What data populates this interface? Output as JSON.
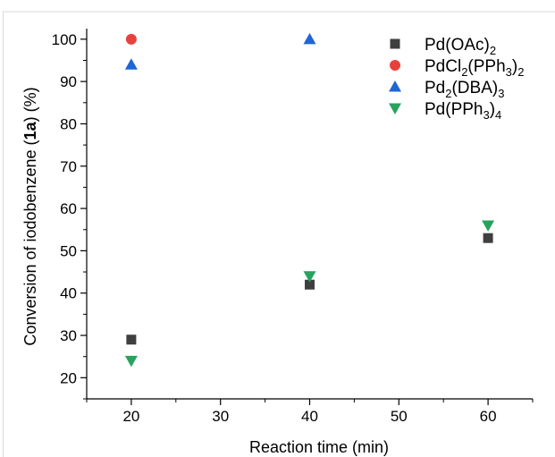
{
  "chart_data": {
    "type": "scatter",
    "xlabel": "Reaction time (min)",
    "ylabel": {
      "before": "Conversion of iodobenzene (",
      "bold": "1a",
      "after": ") (%)"
    },
    "xlim": [
      15,
      65
    ],
    "ylim": [
      15,
      102.5
    ],
    "xticks": [
      20,
      30,
      40,
      50,
      60
    ],
    "yticks": [
      20,
      30,
      40,
      50,
      60,
      70,
      80,
      90,
      100
    ],
    "grid": false,
    "legend_position": "top-right",
    "series": [
      {
        "name": "Pd(OAc)2",
        "name_parts": [
          [
            "Pd(OAc)",
            "n"
          ],
          [
            "2",
            "sub"
          ]
        ],
        "marker": "square",
        "color": "#3f3f3f",
        "x": [
          20,
          40,
          60
        ],
        "y": [
          29,
          42,
          53
        ]
      },
      {
        "name": "PdCl2(PPh3)2",
        "name_parts": [
          [
            "PdCl",
            "n"
          ],
          [
            "2",
            "sub"
          ],
          [
            "(PPh",
            "n"
          ],
          [
            "3",
            "sub"
          ],
          [
            ")",
            "n"
          ],
          [
            "2",
            "sub"
          ]
        ],
        "marker": "circle",
        "color": "#e8413c",
        "x": [
          20
        ],
        "y": [
          100
        ]
      },
      {
        "name": "Pd2(DBA)3",
        "name_parts": [
          [
            "Pd",
            "n"
          ],
          [
            "2",
            "sub"
          ],
          [
            "(DBA)",
            "n"
          ],
          [
            "3",
            "sub"
          ]
        ],
        "marker": "triangle-up",
        "color": "#1f66d6",
        "x": [
          20,
          40
        ],
        "y": [
          94,
          100
        ]
      },
      {
        "name": "Pd(PPh3)4",
        "name_parts": [
          [
            "Pd(PPh",
            "n"
          ],
          [
            "3",
            "sub"
          ],
          [
            ")",
            "n"
          ],
          [
            "4",
            "sub"
          ]
        ],
        "marker": "triangle-down",
        "color": "#27a35e",
        "x": [
          20,
          40,
          60
        ],
        "y": [
          24,
          44,
          56
        ]
      }
    ]
  }
}
